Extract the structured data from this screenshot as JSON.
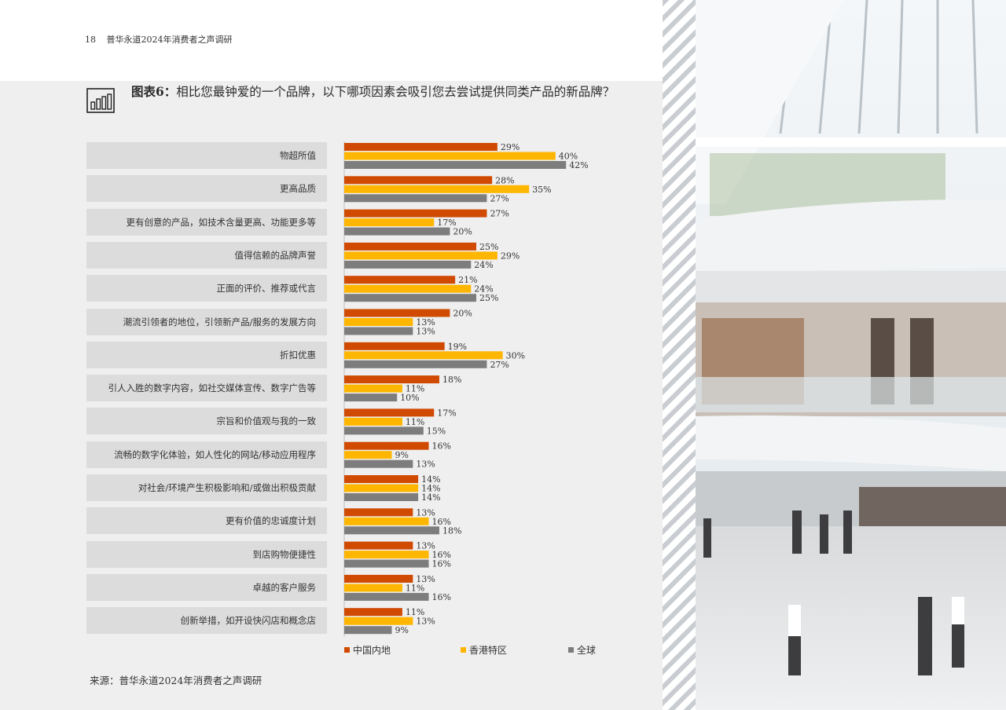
{
  "header": {
    "page_number": "18",
    "running_title": "普华永道2024年消费者之声调研"
  },
  "figure": {
    "title_prefix": "图表6：",
    "title_text": "相比您最钟爱的一个品牌，以下哪项因素会吸引您去尝试提供同类产品的新品牌？",
    "icon": "bar-chart-icon"
  },
  "source": "来源：普华永道2024年消费者之声调研",
  "photo": {
    "icon": "mall-atrium-photo"
  },
  "colors": {
    "china": "#d04a02",
    "hongkong": "#ffb600",
    "global": "#7d7d7d",
    "panel": "#efefef",
    "label_bg": "#dcdcdc"
  },
  "chart_data": {
    "type": "bar",
    "orientation": "horizontal",
    "value_suffix": "%",
    "categories": [
      "物超所值",
      "更高品质",
      "更有创意的产品，如技术含量更高、功能更多等",
      "值得信赖的品牌声誉",
      "正面的评价、推荐或代言",
      "潮流引领者的地位，引领新产品/服务的发展方向",
      "折扣优惠",
      "引人入胜的数字内容，如社交媒体宣传、数字广告等",
      "宗旨和价值观与我的一致",
      "流畅的数字化体验，如人性化的网站/移动应用程序",
      "对社会/环境产生积极影响和/或做出积极贡献",
      "更有价值的忠诚度计划",
      "到店购物便捷性",
      "卓越的客户服务",
      "创新举措，如开设快闪店和概念店"
    ],
    "series": [
      {
        "name": "中国内地",
        "color": "#d04a02",
        "values": [
          29,
          28,
          27,
          25,
          21,
          20,
          19,
          18,
          17,
          16,
          14,
          13,
          13,
          13,
          11
        ]
      },
      {
        "name": "香港特区",
        "color": "#ffb600",
        "values": [
          40,
          35,
          17,
          29,
          24,
          13,
          30,
          11,
          11,
          9,
          14,
          16,
          16,
          11,
          13
        ]
      },
      {
        "name": "全球",
        "color": "#7d7d7d",
        "values": [
          42,
          27,
          20,
          24,
          25,
          13,
          27,
          10,
          15,
          13,
          14,
          18,
          16,
          16,
          9
        ]
      }
    ],
    "legend": {
      "placement": "bottom"
    },
    "grid": false
  }
}
